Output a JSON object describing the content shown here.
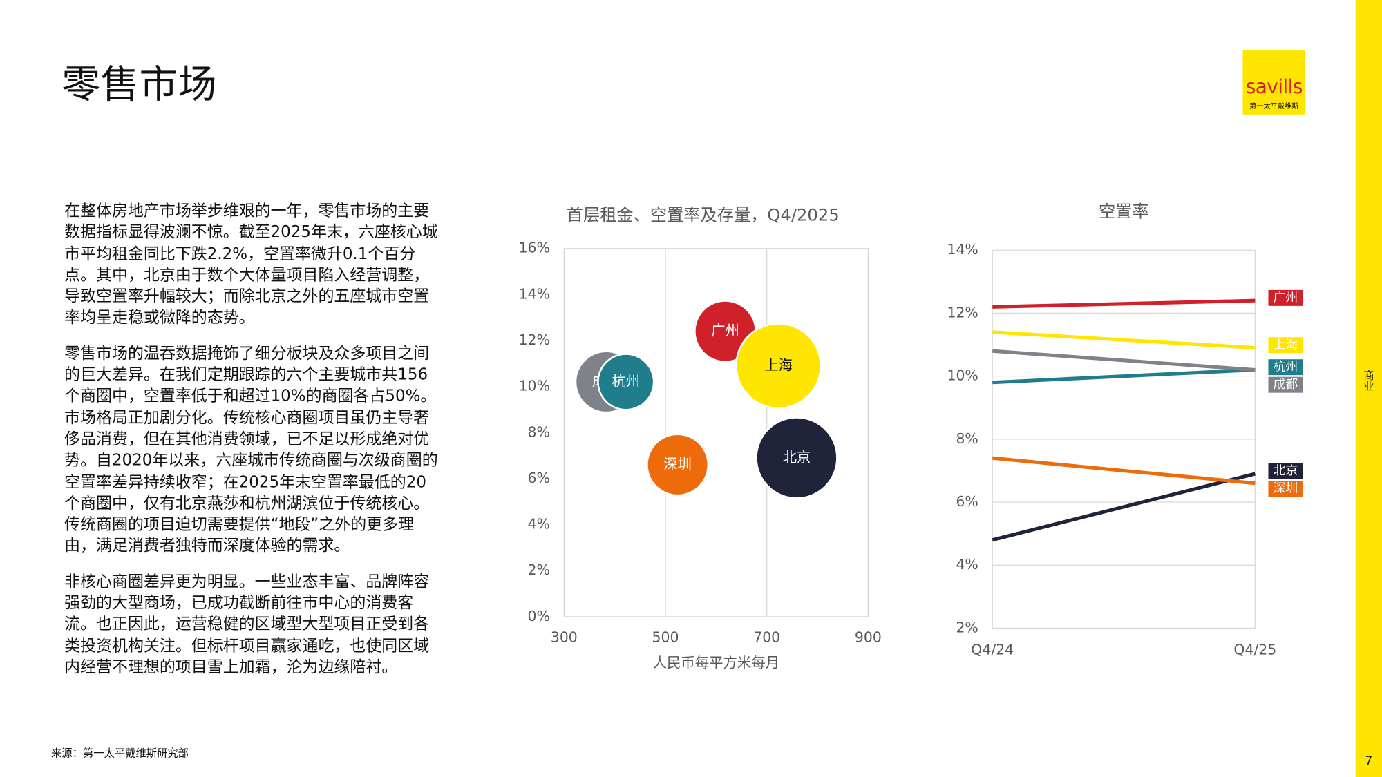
{
  "header": {
    "title": "零售市场"
  },
  "logo": {
    "brand": "savills",
    "subtitle": "第一太平戴维斯"
  },
  "body": {
    "paragraphs": [
      "在整体房地产市场举步维艰的一年，零售市场的主要数据指标显得波澜不惊。截至2025年末，六座核心城市平均租金同比下跌2.2%，空置率微升0.1个百分点。其中，北京由于数个大体量项目陷入经营调整，导致空置率升幅较大；而除北京之外的五座城市空置率均呈走稳或微降的态势。",
      "零售市场的温吞数据掩饰了细分板块及众多项目之间的巨大差异。在我们定期跟踪的六个主要城市共156个商圈中，空置率低于和超过10%的商圈各占50%。市场格局正加剧分化。传统核心商圈项目虽仍主导奢侈品消费，但在其他消费领域，已不足以形成绝对优势。自2020年以来，六座城市传统商圈与次级商圈的空置率差异持续收窄；在2025年末空置率最低的20个商圈中，仅有北京燕莎和杭州湖滨位于传统核心。传统商圈的项目迫切需要提供“地段”之外的更多理由，满足消费者独特而深度体验的需求。",
      "非核心商圈差异更为明显。一些业态丰富、品牌阵容强劲的大型商场，已成功截断前往市中心的消费客流。也正因此，运营稳健的区域型大型项目正受到各类投资机构关注。但标杆项目赢家通吃，也使同区域内经营不理想的项目雪上加霜，沦为边缘陪衬。"
    ]
  },
  "source": "来源：第一太平戴维斯研究部",
  "section": "商业",
  "page_number": "7",
  "chart_data": [
    {
      "type": "bubble",
      "title": "首层租金、空置率及存量，Q4/2025",
      "xlabel": "人民币每平方米每月",
      "xlim": [
        300,
        900
      ],
      "xticks": [
        300,
        500,
        700,
        900
      ],
      "ylim": [
        0,
        16
      ],
      "yticks": [
        {
          "value": 0,
          "label": "0%"
        },
        {
          "value": 2,
          "label": "2%"
        },
        {
          "value": 4,
          "label": "4%"
        },
        {
          "value": 6,
          "label": "6%"
        },
        {
          "value": 8,
          "label": "8%"
        },
        {
          "value": 10,
          "label": "10%"
        },
        {
          "value": 12,
          "label": "12%"
        },
        {
          "value": 14,
          "label": "14%"
        },
        {
          "value": 16,
          "label": "16%"
        }
      ],
      "grid": "x",
      "series": [
        {
          "name": "成都",
          "color": "#7f8289",
          "x": [
            383
          ],
          "values": [
            10.2
          ],
          "sizes": [
            12
          ]
        },
        {
          "name": "杭州",
          "color": "#1f7d8c",
          "x": [
            422
          ],
          "values": [
            10.2
          ],
          "sizes": [
            10
          ]
        },
        {
          "name": "广州",
          "color": "#d0202a",
          "x": [
            618
          ],
          "values": [
            12.4
          ],
          "sizes": [
            12
          ]
        },
        {
          "name": "上海",
          "color": "#ffe600",
          "x": [
            723
          ],
          "values": [
            10.9
          ],
          "sizes": [
            23
          ]
        },
        {
          "name": "深圳",
          "color": "#ee6b0c",
          "x": [
            524
          ],
          "values": [
            6.6
          ],
          "sizes": [
            12
          ]
        },
        {
          "name": "北京",
          "color": "#20243a",
          "x": [
            759
          ],
          "values": [
            6.9
          ],
          "sizes": [
            21
          ]
        }
      ]
    },
    {
      "type": "line",
      "title": "空置率",
      "categories": [
        "Q4/24",
        "Q4/25"
      ],
      "ylim": [
        2,
        14
      ],
      "yticks": [
        {
          "value": 2,
          "label": "2%"
        },
        {
          "value": 4,
          "label": "4%"
        },
        {
          "value": 6,
          "label": "6%"
        },
        {
          "value": 8,
          "label": "8%"
        },
        {
          "value": 10,
          "label": "10%"
        },
        {
          "value": 12,
          "label": "12%"
        },
        {
          "value": 14,
          "label": "14%"
        }
      ],
      "grid": "y",
      "series": [
        {
          "name": "广州",
          "color": "#d0202a",
          "values": [
            12.2,
            12.4
          ]
        },
        {
          "name": "上海",
          "color": "#ffe600",
          "values": [
            11.4,
            10.9
          ]
        },
        {
          "name": "杭州",
          "color": "#1f7d8c",
          "values": [
            9.8,
            10.2
          ]
        },
        {
          "name": "成都",
          "color": "#7f8289",
          "values": [
            10.8,
            10.2
          ]
        },
        {
          "name": "北京",
          "color": "#20243a",
          "values": [
            4.8,
            6.9
          ]
        },
        {
          "name": "深圳",
          "color": "#ee6b0c",
          "values": [
            7.4,
            6.6
          ]
        }
      ]
    }
  ]
}
